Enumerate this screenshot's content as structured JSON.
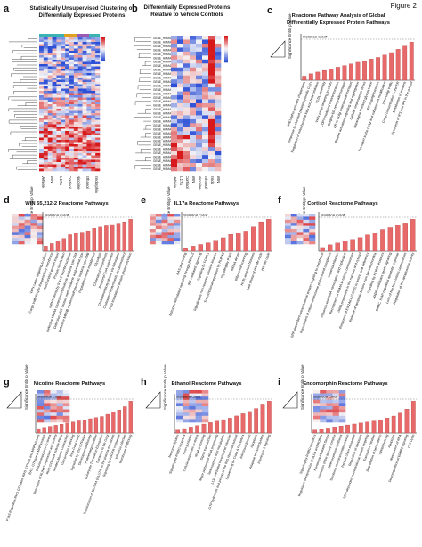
{
  "figure_label": "Figure 2",
  "colors": {
    "bar": "#e8696a",
    "bar_edge": "#b03a3a",
    "hm_red": "#d7191c",
    "hm_blue": "#2c4fd6",
    "hm_white": "#f7f7f7"
  },
  "panels": {
    "a": {
      "letter": "a",
      "title1": "Statistically Unsupervised Clustering of",
      "title2": "Differentially Expressed Proteins",
      "columns": [
        "Vehicle",
        "WIN",
        "IL17a",
        "Cortisol",
        "Nicotine",
        "Ethanol",
        "Endorphin"
      ]
    },
    "b": {
      "letter": "b",
      "title1": "Differentially Expressed Proteins",
      "title2": "Relative to Vehicle Controls",
      "columns": [
        "Vehicle",
        "IL17a",
        "Cortisol",
        "WIN",
        "Nicotine",
        "Ethanol",
        "Endo",
        "WIN"
      ]
    },
    "c": {
      "letter": "c",
      "title1": "Reactome Pathway Analysis of Global",
      "title2": "Differentially Expressed Protein Pathways",
      "cutoff": "Statistical Cutoff",
      "ylabel": "Significance Entity p Value"
    },
    "d": {
      "letter": "d",
      "title": "WIN 55,212-2 Reactome Pathways",
      "cutoff": "Statistical Cutoff",
      "ylabel": "Significance Entity p Value"
    },
    "e": {
      "letter": "e",
      "title": "IL17a Reactome Pathways",
      "cutoff": "Statistical Cutoff",
      "ylabel": "Significance Entity p Value"
    },
    "f": {
      "letter": "f",
      "title": "Cortisol Reactome Pathways",
      "cutoff": "Statistical Cutoff",
      "ylabel": "Significance Entity p Value"
    },
    "g": {
      "letter": "g",
      "title": "Nicotine Reactome Pathways",
      "cutoff": "Statistical Cutoff",
      "ylabel": "Significance Entity p Value"
    },
    "h": {
      "letter": "h",
      "title": "Ethanol Reactome Pathways",
      "cutoff": "Statistical Cutoff",
      "ylabel": "Significance Entity p Value"
    },
    "i": {
      "letter": "i",
      "title": "Endomorphin Reactome Pathways",
      "cutoff": "Statistical Cutoff",
      "ylabel": "Significance Entity p Value"
    }
  },
  "chart_data": [
    {
      "panel": "c",
      "type": "bar",
      "title": "Reactome Pathway Analysis of Global Differentially Expressed Protein Pathways",
      "ylabel": "Significance Entity p Value",
      "categories": [
        "IRE1alpha activates chaperones",
        "Response to elevated platelet cytosolic Ca2+",
        "Regulation of mitochondrial fatty acid beta-oxidation",
        "VLDL assembly",
        "VxPx cargo-targeting to cilium",
        "COPII-mediated vesicle transport",
        "Golgi-to-ER retrograde transport",
        "ER to Golgi anterograde transport",
        "Platelet activation, signaling and aggregation",
        "Cellular responses to stress",
        "Asparagine N-linked glycosylation",
        "ER to golgi transport",
        "Transport to the Golgi and subsequent modification",
        "Intra-Golgi traffic",
        "Cargo concentration in the ER",
        "Metabolism of proteins",
        "Synthesis of IP3 and IP4 in the cytosol"
      ],
      "values": [
        0.5,
        0.8,
        1.0,
        1.2,
        1.4,
        1.6,
        1.8,
        2.0,
        2.2,
        2.4,
        2.6,
        2.8,
        3.1,
        3.4,
        3.8,
        4.2,
        4.7
      ]
    },
    {
      "panel": "d",
      "type": "bar",
      "title": "WIN 55,212-2 Reactome Pathways",
      "ylabel": "Significance Entity p Value",
      "categories": [
        "VxPx cargo-targeting to cilium",
        "Cargo trafficking to the periciliary membrane",
        "Mitochondrial protein import",
        "Protein localization",
        "mRNA decay by 5' to 3' exoribonuclease",
        "Defective MMAA causes methylmalonic aciduria type cblA",
        "Defective MUT causes methylmalonic aciduria mut type",
        "Defective MMAB causes methylmalonic aciduria type cblB",
        "Peptide hormone metabolism",
        "Glycolysis",
        "Cholesterol biosynthesis",
        "Propionyl-CoA catabolism",
        "Cholesterol biosynthesis via lathosterol",
        "Cholesterol biosynthesis via desmosterol",
        "Post-translational protein phosphorylation"
      ],
      "values": [
        0.4,
        0.6,
        0.8,
        1.0,
        1.3,
        1.4,
        1.5,
        1.6,
        1.8,
        1.9,
        2.0,
        2.1,
        2.2,
        2.3,
        2.5
      ]
    },
    {
      "panel": "e",
      "type": "bar",
      "title": "IL17a Reactome Pathways",
      "ylabel": "Significance Entity p Value",
      "categories": [
        "RAS processing",
        "Estrogen-stimulated signaling through PRKCZ",
        "IRS-mediated signalling",
        "Signaling by FGFR1",
        "Signaling by non-receptor tyrosine kinases",
        "Transcriptional regulation by RUNX3",
        "Signaling by PTK6",
        "mRNA decay",
        "Ribosomal scanning",
        "HATs acetylate histones",
        "Late phase of HIV life cycle",
        "HIV life cycle"
      ],
      "values": [
        0.4,
        0.6,
        0.8,
        1.0,
        1.3,
        1.6,
        2.0,
        2.2,
        2.4,
        2.9,
        3.5,
        3.8
      ]
    },
    {
      "panel": "f",
      "type": "bar",
      "title": "Cortisol Reactome Pathways",
      "ylabel": "Significance Entity p Value",
      "categories": [
        "SRP-dependent cotranslational protein targeting to membrane",
        "Recruitment of mitotic centrosome proteins and complexes",
        "Influenza infection",
        "Influenza viral RNA transcription and replication",
        "Recruitment of NuMA to mitotic centrosomes",
        "rRNA processing in the nucleus and cytosol",
        "Response of EIF2AK4 (GCN2) to amino acid deficiency",
        "Release of apoptotic factors from the mitochondria",
        "Signaling by ROBO receptors",
        "NADE modulates death signalling",
        "SMAC, XIAP-regulated apoptotic response",
        "Loss of Nlp from mitotic centrosomes",
        "Regulation of the apoptosome activity"
      ],
      "values": [
        0.4,
        0.7,
        0.9,
        1.1,
        1.3,
        1.5,
        1.8,
        2.0,
        2.4,
        2.6,
        2.9,
        3.1,
        3.5
      ]
    },
    {
      "panel": "g",
      "type": "bar",
      "title": "Nicotine Reactome Pathways",
      "ylabel": "Significance Entity p Value",
      "categories": [
        "PTK6 Regulates RHO GTPases, RAS GTPase and MAP kinases",
        "RAS, GTPase & MAP kinases",
        "Cellular responses to stress",
        "Regulation of RUNX3 expression and activity",
        "RHO GTPases activate PKNs",
        "Striated Muscle Contraction",
        "Gap junction trafficking",
        "Intra-Golgi traffic",
        "Signaling by Rho GTPases",
        "Developmental Biology",
        "Platelet degranulation",
        "Eukaryotic Translation Elongation",
        "Transport to the Golgi",
        "Translocation of SLC2A4 (GLUT4) to the plasma membrane",
        "Signaling by PDGFR in disease",
        "Influenza Infection",
        "Membrane Trafficking"
      ],
      "values": [
        0.4,
        0.5,
        0.6,
        0.7,
        0.8,
        0.9,
        1.0,
        1.1,
        1.2,
        1.3,
        1.4,
        1.5,
        1.7,
        1.9,
        2.1,
        2.4,
        2.9
      ]
    },
    {
      "panel": "h",
      "type": "bar",
      "title": "Ethanol Reactome Pathways",
      "ylabel": "Significance Entity p Value",
      "categories": [
        "Neuronal System",
        "Signaling by ROBO receptors",
        "Axon guidance",
        "Cellular responses to stress",
        "rRNA processing",
        "Signal transduction",
        "Major pathway of rRNA processing",
        "Selenoamino acid metabolism",
        "L13a-mediated translational silencing",
        "GTP hydrolysis and joining of the 60S ribosomal subunit",
        "Scavenging by Class A Receptors",
        "Infectious disease",
        "Apoptosis",
        "Adaptive Immune System",
        "Interleukin-1 signaling"
      ],
      "values": [
        0.4,
        0.6,
        0.8,
        1.0,
        1.2,
        1.4,
        1.6,
        1.8,
        2.0,
        2.3,
        2.6,
        2.9,
        3.3,
        3.8,
        4.3
      ]
    },
    {
      "panel": "i",
      "type": "bar",
      "title": "Endomorphin Reactome Pathways",
      "ylabel": "Significance Entity p Value",
      "categories": [
        "Signaling by ROBO receptors",
        "Regulation of expression of SLITs and ROBOs",
        "Nonsense-Mediated Decay",
        "Formation of the ternary complex",
        "Selenocysteine synthesis",
        "Serotonin neurotransmitter release",
        "Peptide chain elongation",
        "Regulation of apoptosis",
        "SRP-dependent cotranslational protein targeting",
        "Translation initiation",
        "Degradation of beta-catenin",
        "mRNA Splicing",
        "Apoptosis",
        "Metabolism of RNA",
        "Downregulation of ERBB2 signaling",
        "Cell Cycle"
      ],
      "values": [
        0.3,
        0.4,
        0.5,
        0.6,
        0.7,
        0.8,
        0.9,
        1.0,
        1.1,
        1.2,
        1.3,
        1.5,
        1.7,
        2.0,
        2.4,
        3.2
      ]
    }
  ]
}
